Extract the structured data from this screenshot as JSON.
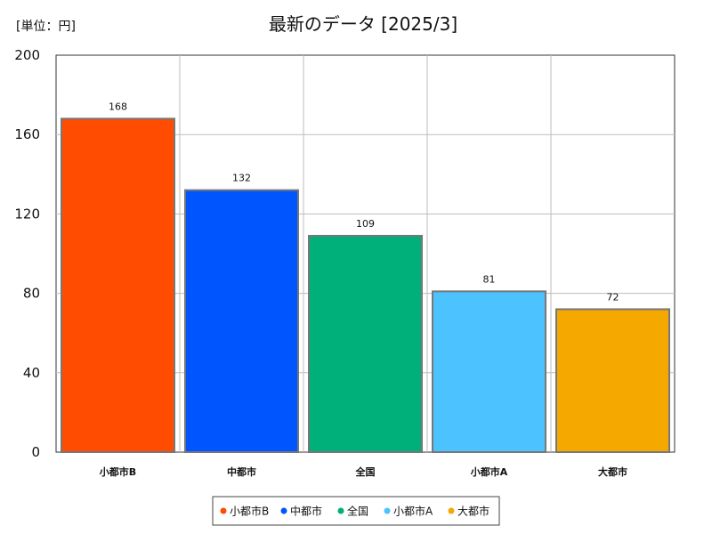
{
  "chart_data": {
    "type": "bar",
    "title": "最新のデータ [2025/3]",
    "unit_label": "[単位：円]",
    "categories": [
      "小都市B",
      "中都市",
      "全国",
      "小都市A",
      "大都市"
    ],
    "values": [
      168,
      132,
      109,
      81,
      72
    ],
    "data_labels": [
      "168",
      "132",
      "109",
      "81",
      "72"
    ],
    "colors": [
      "#ff4c00",
      "#0055ff",
      "#00b07a",
      "#4cc3ff",
      "#f5a800"
    ],
    "ylim": [
      0,
      200
    ],
    "yticks": [
      0,
      40,
      80,
      120,
      160,
      200
    ],
    "ytick_labels": [
      "0",
      "40",
      "80",
      "120",
      "160",
      "200"
    ],
    "grid": true,
    "legend_position": "bottom",
    "legend": [
      "小都市B",
      "中都市",
      "全国",
      "小都市A",
      "大都市"
    ]
  }
}
